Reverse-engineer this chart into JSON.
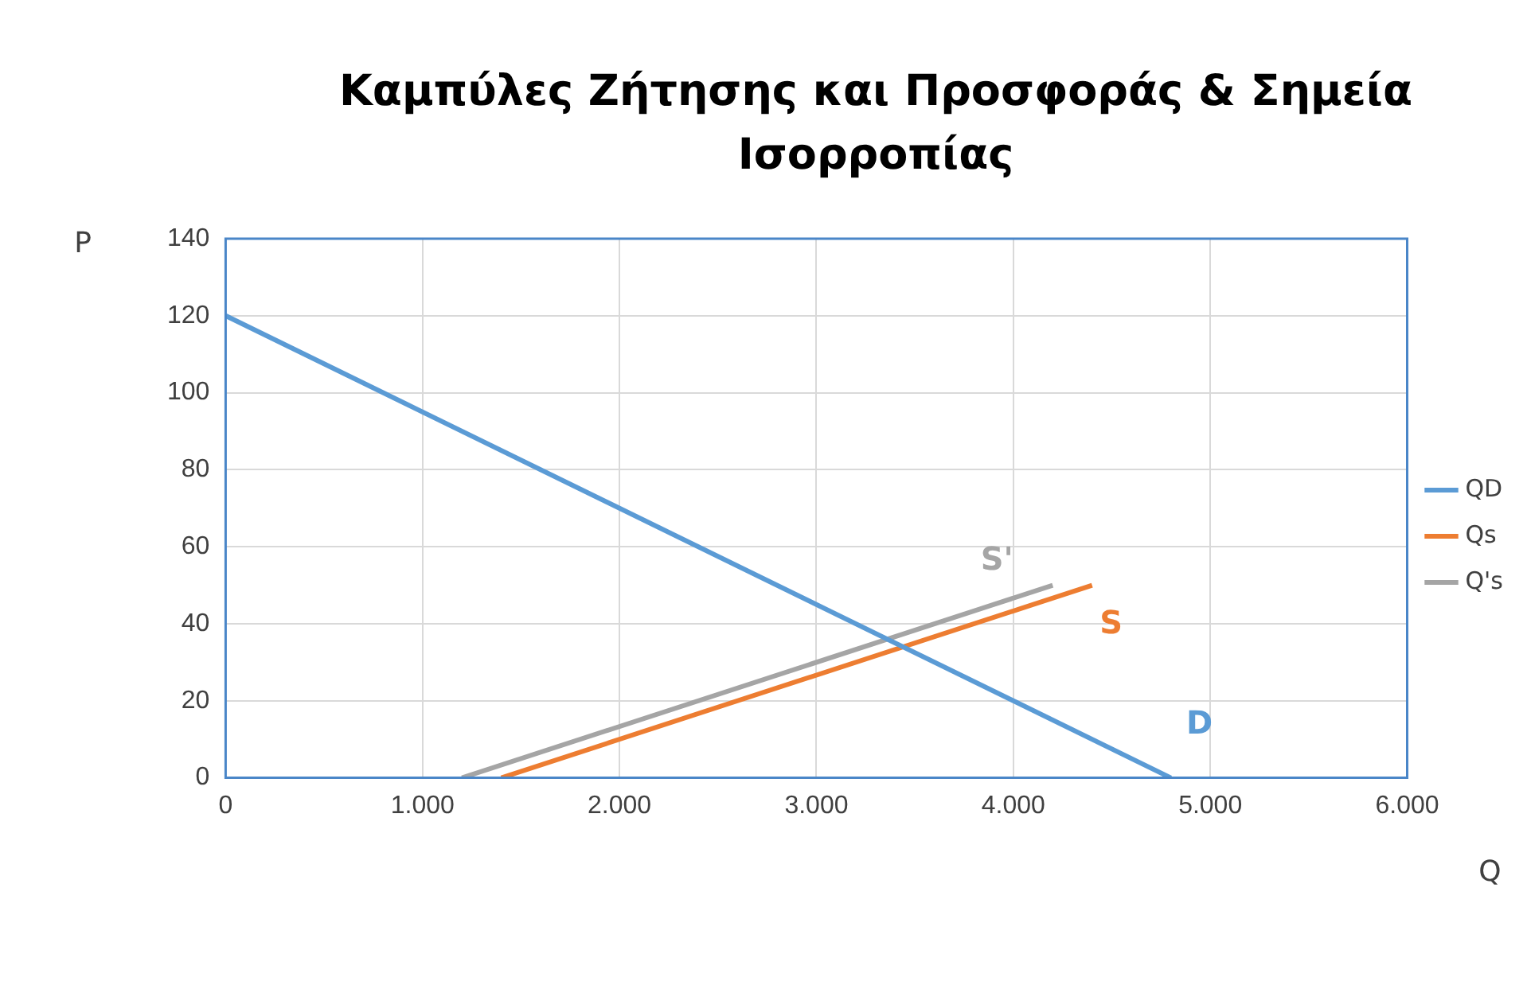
{
  "chart_data": {
    "type": "line",
    "title": "Καμπύλες Ζήτησης και Προσφοράς & Σημεία Ισορροπίας",
    "xlabel": "Q",
    "ylabel": "P",
    "series": [
      {
        "name": "QD",
        "color": "#5b9bd5",
        "x": [
          0,
          4800
        ],
        "values": [
          120,
          0
        ]
      },
      {
        "name": "Qs",
        "color": "#ed7d31",
        "x": [
          1400,
          4400
        ],
        "values": [
          0,
          50
        ]
      },
      {
        "name": "Q's",
        "color": "#a5a5a5",
        "x": [
          1200,
          4200
        ],
        "values": [
          0,
          50
        ]
      }
    ],
    "annotations": [
      "D",
      "S",
      "S'"
    ],
    "xlim": [
      0,
      6000
    ],
    "xticks": [
      0,
      {
        "value": 1000,
        "label": "1.000"
      },
      {
        "value": 2000,
        "label": "2.000"
      },
      {
        "value": 3000,
        "label": "3.000"
      },
      {
        "value": 4000,
        "label": "4.000"
      },
      {
        "value": 5000,
        "label": "5.000"
      },
      {
        "value": 6000,
        "label": "6.000"
      }
    ],
    "ylim": [
      0,
      140
    ],
    "yticks": [
      0,
      20,
      40,
      60,
      80,
      100,
      120,
      140
    ],
    "grid": true,
    "legend": "right",
    "marker": "none",
    "line_style": "solid"
  }
}
